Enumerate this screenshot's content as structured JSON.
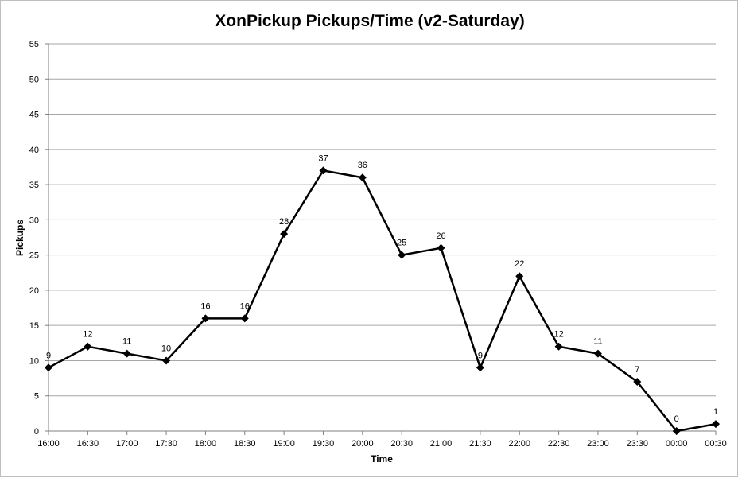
{
  "chart_data": {
    "type": "line",
    "title": "XonPickup Pickups/Time (v2-Saturday)",
    "xlabel": "Time",
    "ylabel": "Pickups",
    "ylim": [
      0,
      55
    ],
    "ytick_step": 5,
    "grid": true,
    "legend": "none",
    "categories": [
      "16:00",
      "16:30",
      "17:00",
      "17:30",
      "18:00",
      "18:30",
      "19:00",
      "19:30",
      "20:00",
      "20:30",
      "21:00",
      "21:30",
      "22:00",
      "22:30",
      "23:00",
      "23:30",
      "00:00",
      "00:30"
    ],
    "series": [
      {
        "values": [
          9,
          12,
          11,
          10,
          16,
          16,
          28,
          37,
          36,
          25,
          26,
          9,
          22,
          12,
          11,
          7,
          0,
          1
        ],
        "color": "#000000",
        "marker": "diamond"
      }
    ]
  }
}
